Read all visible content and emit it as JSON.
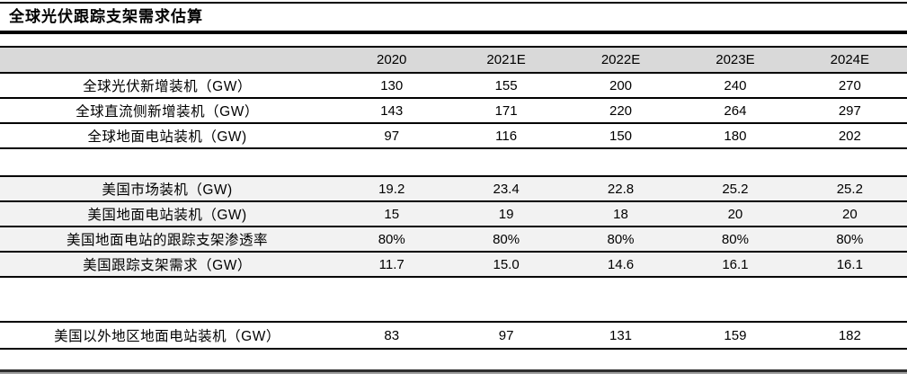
{
  "title": "全球光伏跟踪支架需求估算",
  "header": {
    "cols": [
      "2020",
      "2021E",
      "2022E",
      "2023E",
      "2024E"
    ]
  },
  "sections": [
    {
      "name": "global",
      "rows": [
        {
          "label": "全球光伏新增装机（GW）",
          "values": [
            "130",
            "155",
            "200",
            "240",
            "270"
          ]
        },
        {
          "label": "全球直流侧新增装机（GW）",
          "values": [
            "143",
            "171",
            "220",
            "264",
            "297"
          ]
        },
        {
          "label": "全球地面电站装机（GW)",
          "values": [
            "97",
            "116",
            "150",
            "180",
            "202"
          ]
        }
      ]
    },
    {
      "name": "us",
      "rows": [
        {
          "label": "美国市场装机（GW)",
          "values": [
            "19.2",
            "23.4",
            "22.8",
            "25.2",
            "25.2"
          ]
        },
        {
          "label": "美国地面电站装机（GW)",
          "values": [
            "15",
            "19",
            "18",
            "20",
            "20"
          ]
        },
        {
          "label": "美国地面电站的跟踪支架渗透率",
          "values": [
            "80%",
            "80%",
            "80%",
            "80%",
            "80%"
          ]
        },
        {
          "label": "美国跟踪支架需求（GW）",
          "values": [
            "11.7",
            "15.0",
            "14.6",
            "16.1",
            "16.1"
          ]
        }
      ]
    },
    {
      "name": "ex-us",
      "rows": [
        {
          "label": "美国以外地区地面电站装机（GW）",
          "values": [
            "83",
            "97",
            "131",
            "159",
            "182"
          ]
        }
      ]
    }
  ],
  "colors": {
    "header_bg": "#d9d9d9",
    "us_block_bg": "#f2f2f2",
    "border": "#000000",
    "text": "#000000"
  }
}
